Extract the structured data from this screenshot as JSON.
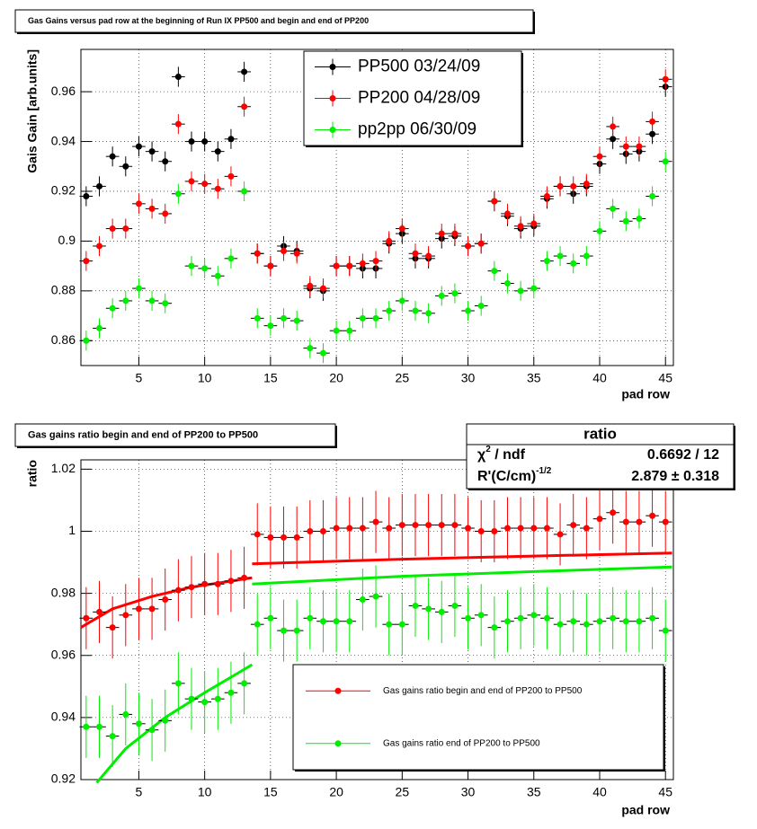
{
  "chart_data": [
    {
      "type": "scatter",
      "title": "Gas Gains versus pad row at the beginning of Run IX PP500 and begin and end of PP200",
      "x_label": "pad row",
      "y_label": "Gais Gain [arb.units]",
      "x": [
        1,
        2,
        3,
        4,
        5,
        6,
        7,
        8,
        9,
        10,
        11,
        12,
        13,
        14,
        15,
        16,
        17,
        18,
        19,
        20,
        21,
        22,
        23,
        24,
        25,
        26,
        27,
        28,
        29,
        30,
        31,
        32,
        33,
        34,
        35,
        36,
        37,
        38,
        39,
        40,
        41,
        42,
        43,
        44,
        45
      ],
      "xlim": [
        0.6,
        45.6
      ],
      "xticks": [
        5,
        10,
        15,
        20,
        25,
        30,
        35,
        40,
        45
      ],
      "ylim": [
        0.85,
        0.977
      ],
      "yticks": [
        0.86,
        0.88,
        0.9,
        0.92,
        0.94,
        0.96
      ],
      "grid": true,
      "legend": "top-right",
      "series": [
        {
          "name": "PP500 03/24/09",
          "color": "#000000",
          "yerr": 0.004,
          "values": [
            0.918,
            0.922,
            0.934,
            0.93,
            0.938,
            0.936,
            0.932,
            0.966,
            0.94,
            0.94,
            0.936,
            0.941,
            0.968,
            0.895,
            0.89,
            0.898,
            0.896,
            0.881,
            0.88,
            0.89,
            0.89,
            0.889,
            0.889,
            0.899,
            0.903,
            0.893,
            0.893,
            0.901,
            0.902,
            0.898,
            0.899,
            0.916,
            0.91,
            0.905,
            0.906,
            0.917,
            0.922,
            0.919,
            0.922,
            0.931,
            0.941,
            0.935,
            0.936,
            0.943,
            0.962
          ]
        },
        {
          "name": "PP200 04/28/09",
          "color": "#ff0000",
          "yerr": 0.004,
          "values": [
            0.892,
            0.898,
            0.905,
            0.905,
            0.915,
            0.913,
            0.911,
            0.947,
            0.924,
            0.923,
            0.921,
            0.926,
            0.954,
            0.895,
            0.89,
            0.896,
            0.895,
            0.882,
            0.881,
            0.89,
            0.89,
            0.891,
            0.892,
            0.9,
            0.905,
            0.895,
            0.894,
            0.903,
            0.903,
            0.898,
            0.899,
            0.916,
            0.911,
            0.906,
            0.907,
            0.918,
            0.922,
            0.922,
            0.923,
            0.934,
            0.946,
            0.938,
            0.938,
            0.948,
            0.965
          ]
        },
        {
          "name": "pp2pp 06/30/09",
          "color": "#00ee00",
          "yerr": 0.004,
          "values": [
            0.86,
            0.865,
            0.873,
            0.876,
            0.881,
            0.876,
            0.875,
            0.919,
            0.89,
            0.889,
            0.886,
            0.893,
            0.92,
            0.869,
            0.866,
            0.869,
            0.868,
            0.857,
            0.855,
            0.864,
            0.864,
            0.869,
            0.869,
            0.872,
            0.876,
            0.872,
            0.871,
            0.878,
            0.879,
            0.872,
            0.874,
            0.888,
            0.883,
            0.88,
            0.881,
            0.892,
            0.894,
            0.891,
            0.894,
            0.904,
            0.913,
            0.908,
            0.909,
            0.918,
            0.932
          ]
        }
      ]
    },
    {
      "type": "scatter",
      "title": "Gas gains ratio begin and end  of PP200 to PP500",
      "x_label": "pad row",
      "y_label": "ratio",
      "x": [
        1,
        2,
        3,
        4,
        5,
        6,
        7,
        8,
        9,
        10,
        11,
        12,
        13,
        14,
        15,
        16,
        17,
        18,
        19,
        20,
        21,
        22,
        23,
        24,
        25,
        26,
        27,
        28,
        29,
        30,
        31,
        32,
        33,
        34,
        35,
        36,
        37,
        38,
        39,
        40,
        41,
        42,
        43,
        44,
        45
      ],
      "xlim": [
        0.6,
        45.6
      ],
      "xticks": [
        5,
        10,
        15,
        20,
        25,
        30,
        35,
        40,
        45
      ],
      "ylim": [
        0.92,
        1.023
      ],
      "yticks": [
        0.92,
        0.94,
        0.96,
        0.98,
        1,
        1.02
      ],
      "grid": true,
      "legend": "bottom-right",
      "series": [
        {
          "name": "Gas gains ratio begin and end  of PP200 to PP500",
          "color": "#ff0000",
          "yerr": 0.01,
          "values": [
            0.972,
            0.974,
            0.969,
            0.973,
            0.975,
            0.975,
            0.978,
            0.981,
            0.982,
            0.983,
            0.983,
            0.984,
            0.985,
            0.999,
            0.998,
            0.998,
            0.998,
            1.0,
            1.0,
            1.001,
            1.001,
            1.001,
            1.003,
            1.001,
            1.002,
            1.002,
            1.002,
            1.002,
            1.002,
            1.001,
            1.0,
            1.0,
            1.001,
            1.001,
            1.001,
            1.001,
            0.999,
            1.002,
            1.001,
            1.004,
            1.006,
            1.003,
            1.003,
            1.005,
            1.003
          ]
        },
        {
          "name": "Gas gains ratio end of PP200 to PP500",
          "color": "#00ee00",
          "yerr": 0.01,
          "values": [
            0.937,
            0.937,
            0.934,
            0.941,
            0.938,
            0.936,
            0.939,
            0.951,
            0.946,
            0.945,
            0.946,
            0.948,
            0.951,
            0.97,
            0.972,
            0.968,
            0.968,
            0.972,
            0.971,
            0.971,
            0.971,
            0.978,
            0.979,
            0.97,
            0.97,
            0.976,
            0.975,
            0.974,
            0.976,
            0.972,
            0.973,
            0.969,
            0.971,
            0.972,
            0.973,
            0.972,
            0.97,
            0.971,
            0.97,
            0.971,
            0.972,
            0.971,
            0.971,
            0.972,
            0.968
          ]
        }
      ],
      "fits": [
        {
          "color": "#ff0000",
          "x": [
            0.6,
            3,
            6,
            9,
            13.6,
            13.6,
            13.6,
            25,
            35,
            45.5
          ],
          "values": [
            0.969,
            0.975,
            0.979,
            0.982,
            0.985,
            null,
            0.9895,
            0.991,
            0.992,
            0.993
          ]
        },
        {
          "color": "#00ee00",
          "x": [
            1.8,
            4,
            7,
            10,
            13.6,
            13.6,
            13.6,
            25,
            35,
            45.5
          ],
          "values": [
            0.919,
            0.93,
            0.94,
            0.948,
            0.957,
            null,
            0.983,
            0.9855,
            0.987,
            0.9885
          ]
        }
      ],
      "stats": {
        "title": "ratio",
        "rows": [
          {
            "name": "χ",
            "sup": "2",
            "rest": " / ndf",
            "value": "0.6692 / 12"
          },
          {
            "name": "R'(C/cm)",
            "sup": "-1/2",
            "value": "2.879 ± 0.318"
          }
        ]
      }
    }
  ]
}
